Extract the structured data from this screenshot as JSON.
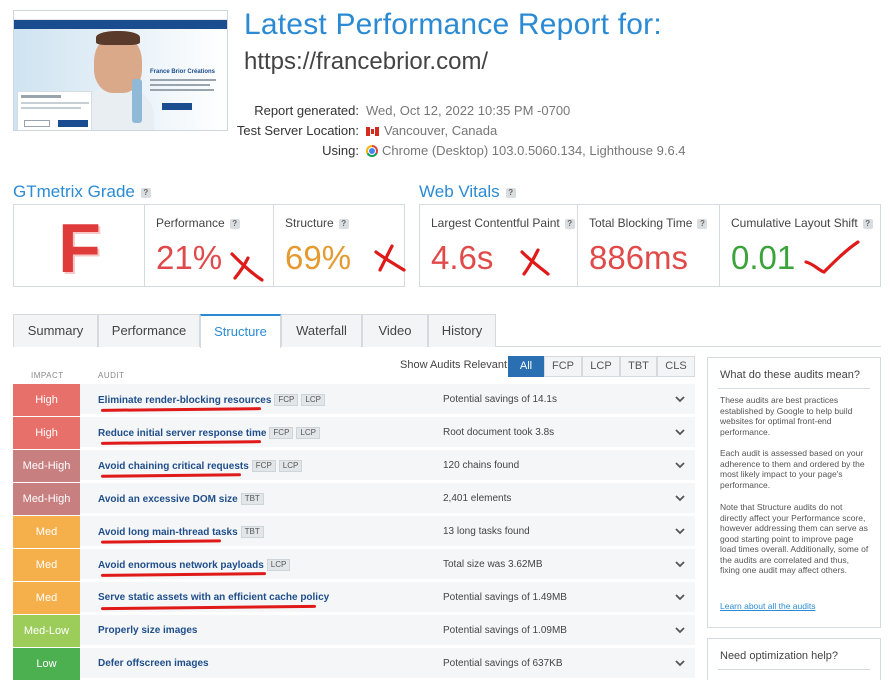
{
  "thumbnail": {
    "brand": "France Brior Créations"
  },
  "header": {
    "title": "Latest Performance Report for:",
    "url": "https://francebrior.com/"
  },
  "meta": {
    "generated_label": "Report generated:",
    "generated_value": "Wed, Oct 12, 2022 10:35 PM -0700",
    "location_label": "Test Server Location:",
    "location_value": "Vancouver, Canada",
    "using_label": "Using:",
    "using_value": "Chrome (Desktop) 103.0.5060.134, Lighthouse 9.6.4"
  },
  "grade": {
    "section_title": "GTmetrix Grade",
    "letter": "F",
    "performance_label": "Performance",
    "performance_value": "21%",
    "structure_label": "Structure",
    "structure_value": "69%"
  },
  "vitals": {
    "section_title": "Web Vitals",
    "lcp_label": "Largest Contentful Paint",
    "lcp_value": "4.6s",
    "tbt_label": "Total Blocking Time",
    "tbt_value": "886ms",
    "cls_label": "Cumulative Layout Shift",
    "cls_value": "0.01"
  },
  "tabs": [
    "Summary",
    "Performance",
    "Structure",
    "Waterfall",
    "Video",
    "History"
  ],
  "active_tab": "Structure",
  "audits_header": {
    "impact": "IMPACT",
    "audit": "AUDIT",
    "show_label": "Show Audits Relevant to"
  },
  "filters": [
    "All",
    "FCP",
    "LCP",
    "TBT",
    "CLS"
  ],
  "audits": [
    {
      "impact": "High",
      "name": "Eliminate render-blocking resources",
      "tags": [
        "FCP",
        "LCP"
      ],
      "result": "Potential savings of 14.1s"
    },
    {
      "impact": "High",
      "name": "Reduce initial server response time",
      "tags": [
        "FCP",
        "LCP"
      ],
      "result": "Root document took 3.8s"
    },
    {
      "impact": "Med-High",
      "name": "Avoid chaining critical requests",
      "tags": [
        "FCP",
        "LCP"
      ],
      "result": "120 chains found"
    },
    {
      "impact": "Med-High",
      "name": "Avoid an excessive DOM size",
      "tags": [
        "TBT"
      ],
      "result": "2,401 elements"
    },
    {
      "impact": "Med",
      "name": "Avoid long main-thread tasks",
      "tags": [
        "TBT"
      ],
      "result": "13 long tasks found"
    },
    {
      "impact": "Med",
      "name": "Avoid enormous network payloads",
      "tags": [
        "LCP"
      ],
      "result": "Total size was 3.62MB"
    },
    {
      "impact": "Med",
      "name": "Serve static assets with an efficient cache policy",
      "tags": [],
      "result": "Potential savings of 1.49MB"
    },
    {
      "impact": "Med-Low",
      "name": "Properly size images",
      "tags": [],
      "result": "Potential savings of 1.09MB"
    },
    {
      "impact": "Low",
      "name": "Defer offscreen images",
      "tags": [],
      "result": "Potential savings of 637KB"
    }
  ],
  "impact_colors": {
    "High": "#e8706a",
    "Med-High": "#c77f80",
    "Med": "#f5b04c",
    "Med-Low": "#9ccc5a",
    "Low": "#4caf50"
  },
  "side_panel": {
    "title": "What do these audits mean?",
    "p1": "These audits are best practices established by Google to help build websites for optimal front-end performance.",
    "p2": "Each audit is assessed based on your adherence to them and ordered by the most likely impact to your page's performance.",
    "p3": "Note that Structure audits do not directly affect your Performance score, however addressing them can serve as good starting point to improve page load times overall. Additionally, some of the audits are correlated and thus, fixing one audit may affect others.",
    "link": "Learn about all the audits"
  },
  "side_panel2": {
    "title": "Need optimization help?"
  }
}
